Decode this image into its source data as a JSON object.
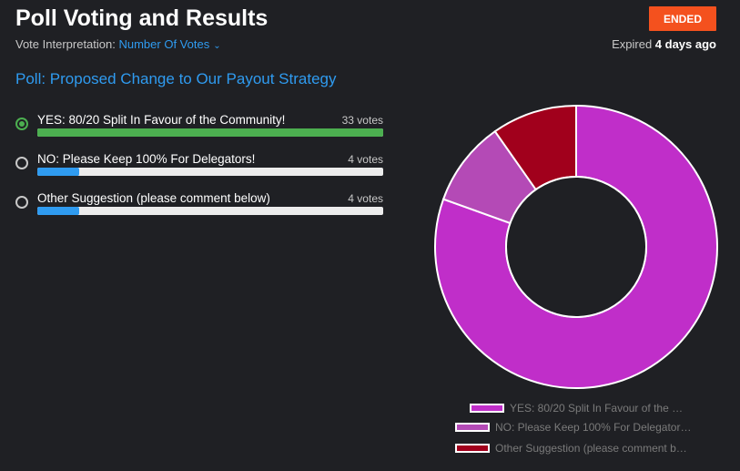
{
  "header": {
    "title": "Poll Voting and Results",
    "status_badge": "ENDED",
    "interpretation_label": "Vote Interpretation:",
    "interpretation_value": "Number Of Votes",
    "expired_prefix": "Expired ",
    "expired_value": "4 days ago"
  },
  "poll": {
    "title": "Poll: Proposed Change to Our Payout Strategy",
    "options": [
      {
        "label": "YES: 80/20 Split In Favour of the Community!",
        "votes_text": "33 votes",
        "votes": 33,
        "selected": true,
        "bar_color": "#4caf50",
        "share": 1.0
      },
      {
        "label": "NO: Please Keep 100% For Delegators!",
        "votes_text": "4 votes",
        "votes": 4,
        "selected": false,
        "bar_color": "#2f9bf0",
        "share": 0.12
      },
      {
        "label": "Other Suggestion (please comment below)",
        "votes_text": "4 votes",
        "votes": 4,
        "selected": false,
        "bar_color": "#2f9bf0",
        "share": 0.12
      }
    ]
  },
  "chart_data": {
    "type": "pie",
    "categories": [
      "YES: 80/20 Split In Favour of the …",
      "NO: Please Keep 100% For Delegator…",
      "Other Suggestion (please comment b…"
    ],
    "values": [
      33,
      4,
      4
    ],
    "colors": [
      "#c02ec9",
      "#b44ab6",
      "#a1001c"
    ],
    "donut": true,
    "legend_position": "bottom"
  }
}
